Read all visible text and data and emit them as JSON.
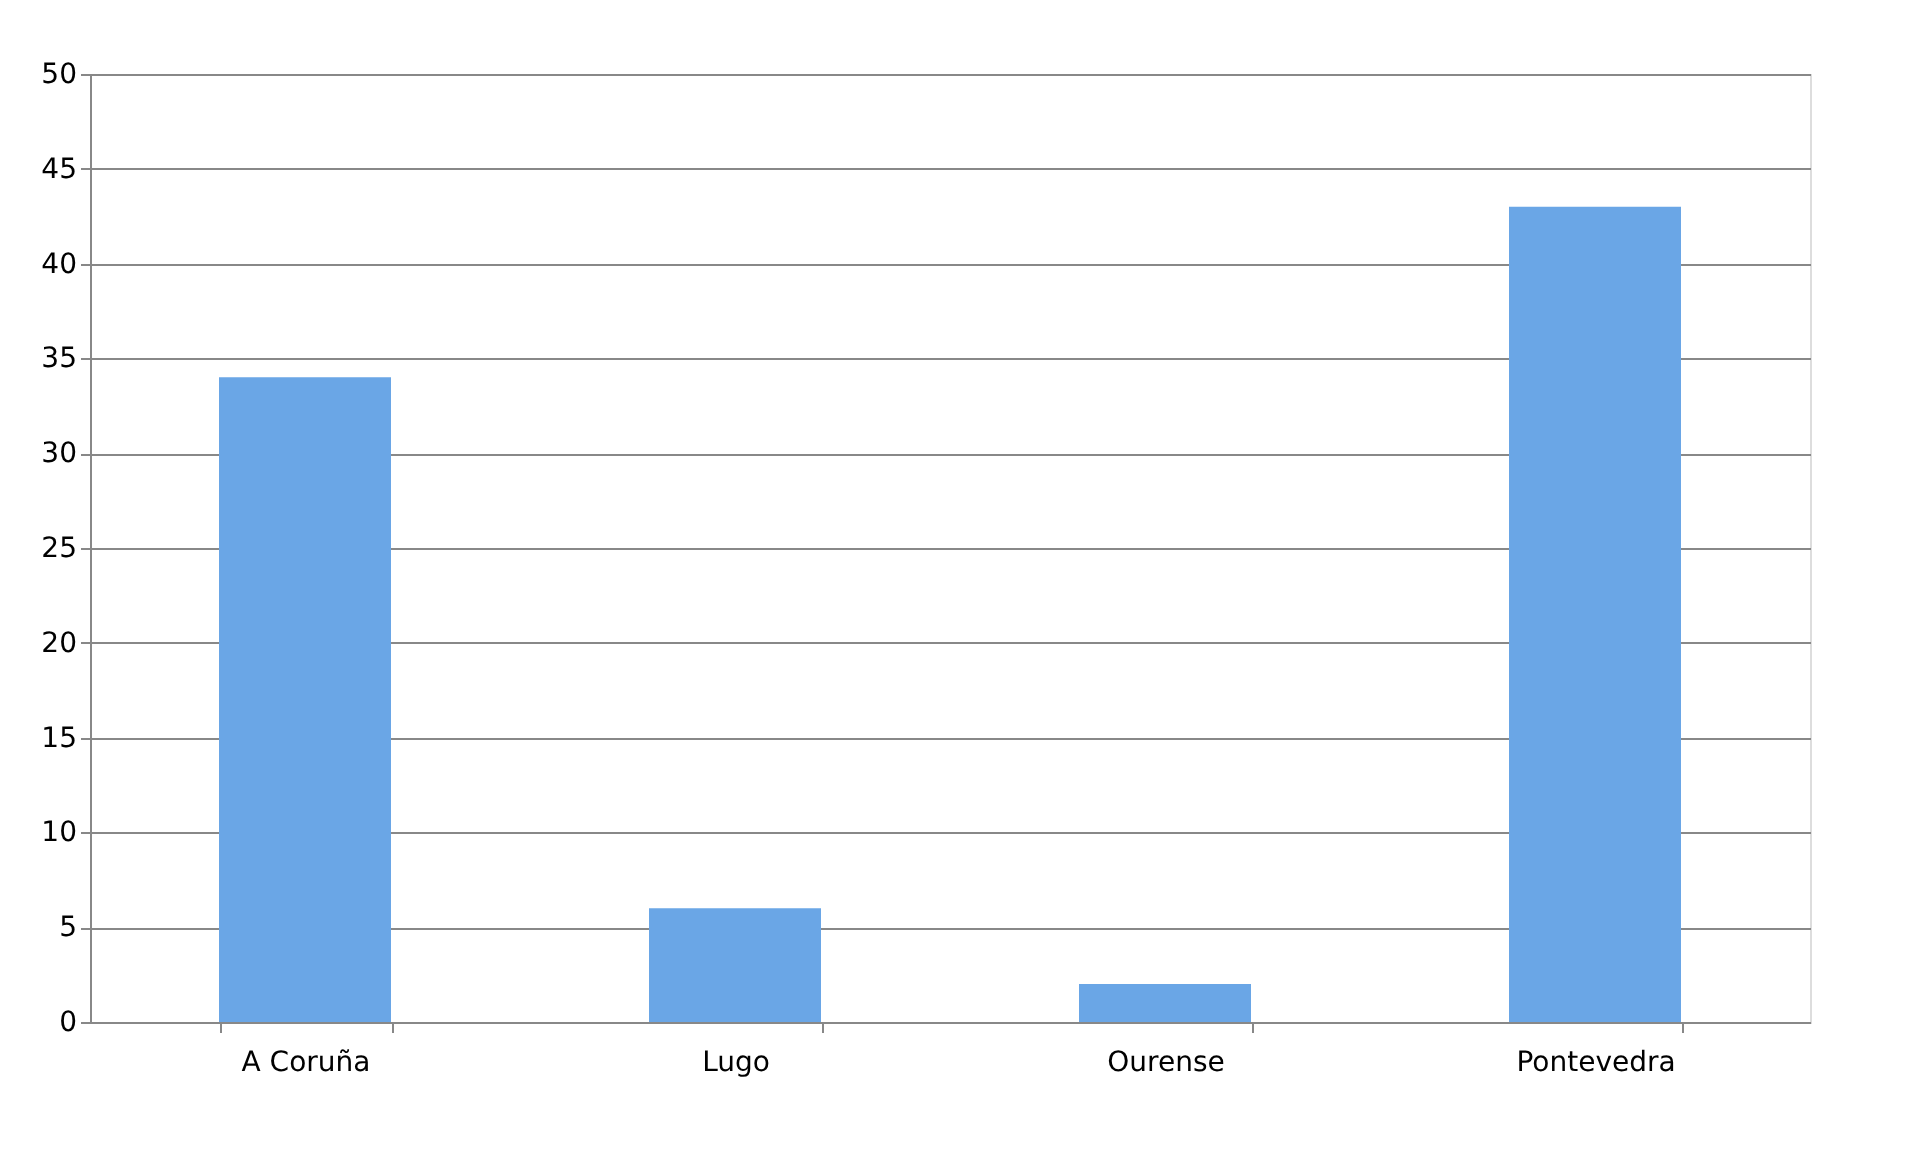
{
  "chart_data": {
    "type": "bar",
    "categories": [
      "A Coruña",
      "Lugo",
      "Ourense",
      "Pontevedra"
    ],
    "values": [
      34,
      6,
      2,
      43
    ],
    "color": "#6aa6e6",
    "ylim": [
      0,
      50
    ],
    "yticks": [
      0,
      5,
      10,
      15,
      20,
      25,
      30,
      35,
      40,
      45,
      50
    ],
    "grid": "y"
  }
}
